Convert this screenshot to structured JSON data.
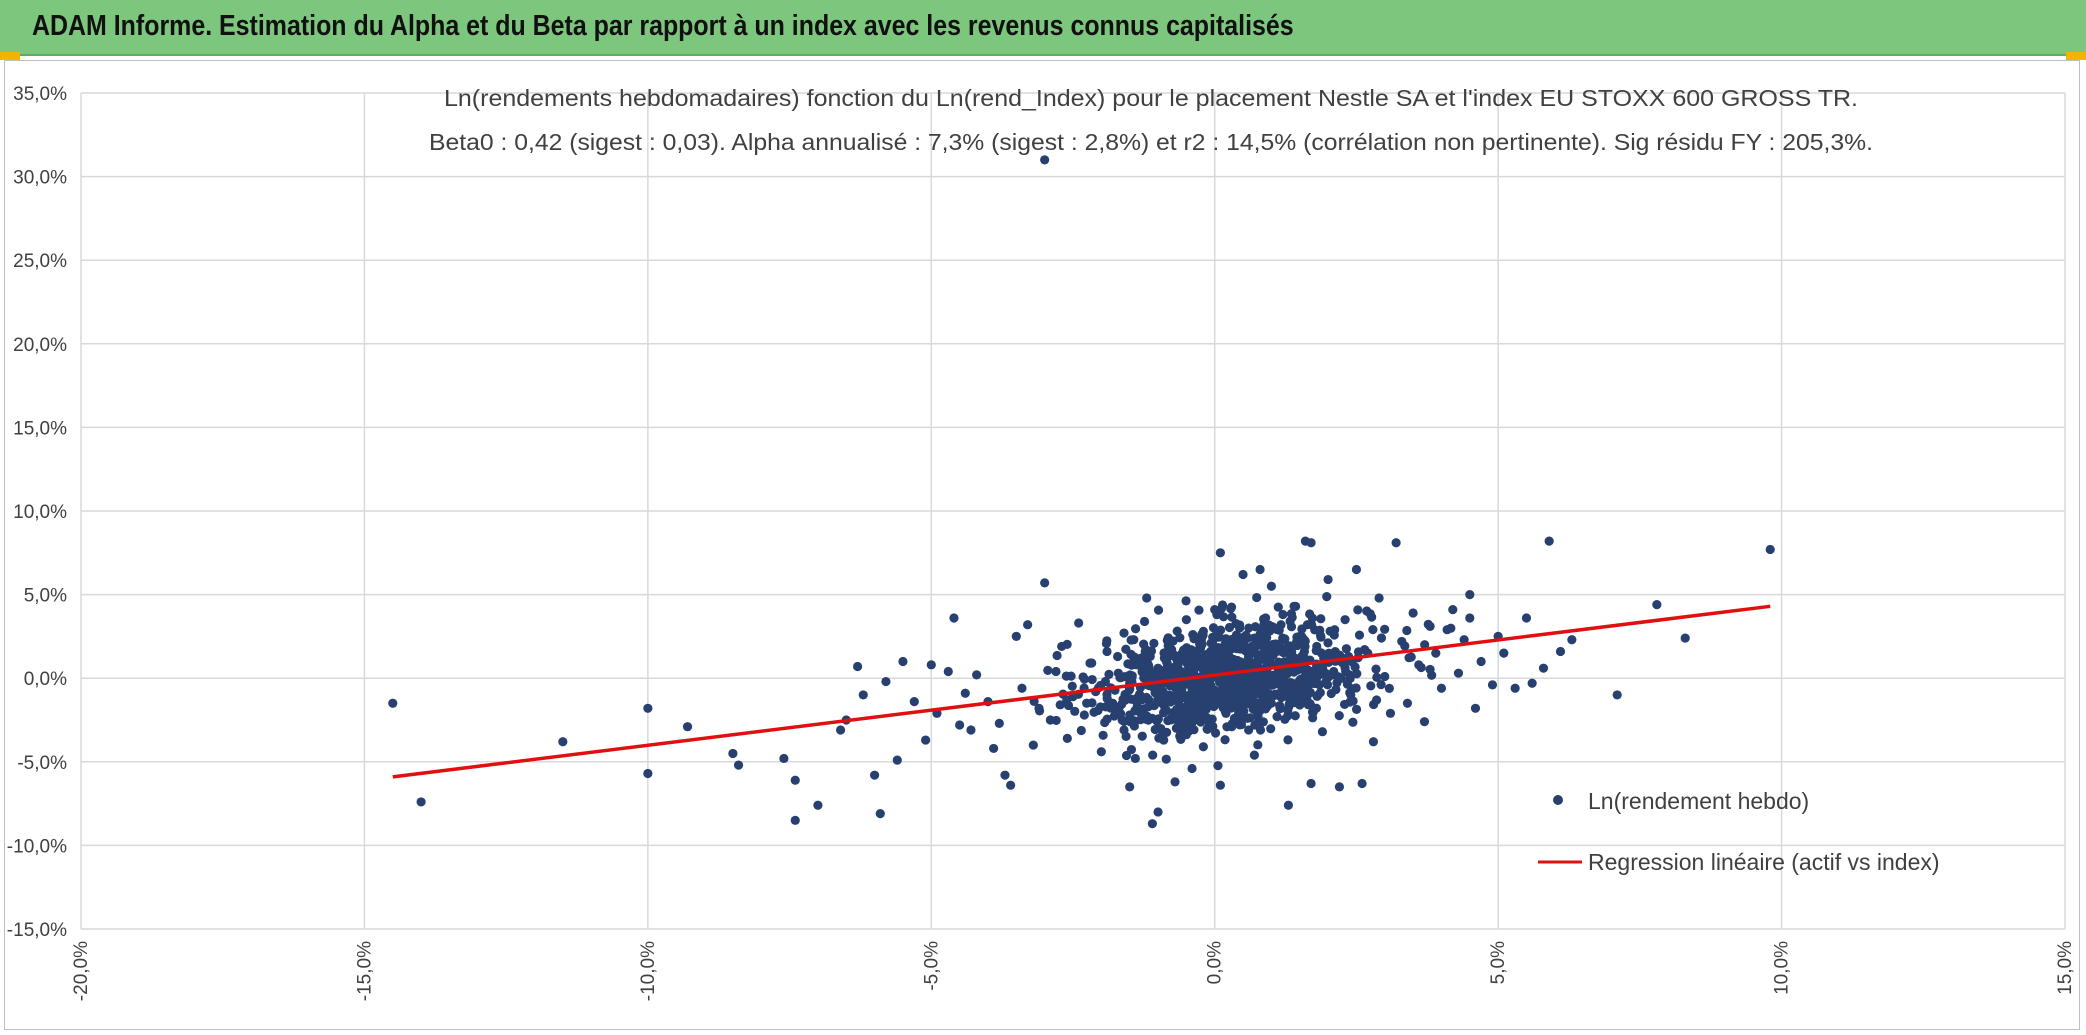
{
  "banner": {
    "title": "ADAM Informe. Estimation du Alpha et du Beta par rapport à un index avec les revenus connus capitalisés",
    "background": "#7dc67d",
    "accent": "#f2b400"
  },
  "chart_data": {
    "type": "scatter",
    "title": "Ln(rendements hebdomadaires) fonction du Ln(rend_Index) pour le placement Nestle SA et l'index EU STOXX 600 GROSS TR.",
    "subtitle": "Beta0 : 0,42 (sigest : 0,03). Alpha annualisé : 7,3% (sigest : 2,8%) et r2 : 14,5% (corrélation non pertinente). Sig résidu FY : 205,3%.",
    "xlim": [
      -20,
      15
    ],
    "ylim": [
      -15,
      35
    ],
    "x_ticks": [
      -20,
      -15,
      -10,
      -5,
      0,
      5,
      10,
      15
    ],
    "y_ticks": [
      -15,
      -10,
      -5,
      0,
      5,
      10,
      15,
      20,
      25,
      30,
      35
    ],
    "x_tick_labels": [
      "-20,0%",
      "-15,0%",
      "-10,0%",
      "-5,0%",
      "0,0%",
      "5,0%",
      "10,0%",
      "15,0%"
    ],
    "y_tick_labels": [
      "-15,0%",
      "-10,0%",
      "-5,0%",
      "0,0%",
      "5,0%",
      "10,0%",
      "15,0%",
      "20,0%",
      "25,0%",
      "30,0%",
      "35,0%"
    ],
    "grid": true,
    "legend_position": "bottom-right",
    "series": [
      {
        "name": "Ln(rendement hebdo)",
        "kind": "scatter",
        "color": "#27406f",
        "points": [
          [
            -14.5,
            -1.5
          ],
          [
            -14.0,
            -7.4
          ],
          [
            -11.5,
            -3.8
          ],
          [
            -10.0,
            -1.8
          ],
          [
            -10.0,
            -5.7
          ],
          [
            -9.3,
            -2.9
          ],
          [
            -8.5,
            -4.5
          ],
          [
            -8.4,
            -5.2
          ],
          [
            -7.6,
            -4.8
          ],
          [
            -7.4,
            -8.5
          ],
          [
            -7.4,
            -6.1
          ],
          [
            -7.0,
            -7.6
          ],
          [
            -6.6,
            -3.1
          ],
          [
            -6.5,
            -2.5
          ],
          [
            -6.3,
            0.7
          ],
          [
            -6.2,
            -1.0
          ],
          [
            -6.0,
            -5.8
          ],
          [
            -5.9,
            -8.1
          ],
          [
            -5.8,
            -0.2
          ],
          [
            -5.6,
            -4.9
          ],
          [
            -5.5,
            1.0
          ],
          [
            -5.3,
            -1.4
          ],
          [
            -5.1,
            -3.7
          ],
          [
            -5.0,
            0.8
          ],
          [
            -4.9,
            -2.1
          ],
          [
            -4.7,
            0.4
          ],
          [
            -4.6,
            3.6
          ],
          [
            -4.5,
            -2.8
          ],
          [
            -4.4,
            -0.9
          ],
          [
            -4.3,
            -3.1
          ],
          [
            -4.2,
            0.2
          ],
          [
            -4.0,
            -1.4
          ],
          [
            -3.9,
            -4.2
          ],
          [
            -3.8,
            -2.7
          ],
          [
            -3.7,
            -5.8
          ],
          [
            -3.6,
            -6.4
          ],
          [
            -3.5,
            2.5
          ],
          [
            -3.4,
            -0.6
          ],
          [
            -3.3,
            3.2
          ],
          [
            -3.2,
            -4.0
          ],
          [
            -3.1,
            -1.8
          ],
          [
            -3.0,
            5.7
          ],
          [
            -3.0,
            31.0
          ],
          [
            -2.9,
            -2.5
          ],
          [
            -2.8,
            0.4
          ],
          [
            -2.7,
            1.9
          ],
          [
            -2.6,
            -3.6
          ],
          [
            -2.5,
            -1.1
          ],
          [
            -2.4,
            3.3
          ],
          [
            -2.3,
            -2.2
          ],
          [
            -2.2,
            0.9
          ],
          [
            -2.1,
            -0.8
          ],
          [
            -2.0,
            -4.4
          ],
          [
            -1.9,
            1.6
          ],
          [
            -1.8,
            -1.5
          ],
          [
            -1.7,
            0.3
          ],
          [
            -1.6,
            -3.1
          ],
          [
            -1.6,
            2.7
          ],
          [
            -1.5,
            -6.5
          ],
          [
            -1.5,
            -0.3
          ],
          [
            -1.4,
            -4.8
          ],
          [
            -1.3,
            1.2
          ],
          [
            -1.2,
            -2.3
          ],
          [
            -1.2,
            4.8
          ],
          [
            -1.1,
            -8.7
          ],
          [
            -1.0,
            -8.0
          ],
          [
            -1.0,
            0.6
          ],
          [
            -0.9,
            -3.7
          ],
          [
            -0.8,
            2.2
          ],
          [
            -0.8,
            -1.0
          ],
          [
            -0.7,
            -6.2
          ],
          [
            -0.6,
            0.0
          ],
          [
            -0.5,
            3.5
          ],
          [
            -0.5,
            -2.4
          ],
          [
            -0.4,
            1.3
          ],
          [
            -0.4,
            -5.4
          ],
          [
            -0.3,
            -0.7
          ],
          [
            -0.2,
            2.8
          ],
          [
            -0.2,
            -4.1
          ],
          [
            -0.1,
            0.5
          ],
          [
            0.0,
            -1.6
          ],
          [
            0.0,
            4.1
          ],
          [
            0.1,
            -6.4
          ],
          [
            0.1,
            7.5
          ],
          [
            0.2,
            1.8
          ],
          [
            0.3,
            -2.9
          ],
          [
            0.4,
            0.2
          ],
          [
            0.5,
            6.2
          ],
          [
            0.5,
            -1.2
          ],
          [
            0.6,
            3.0
          ],
          [
            0.7,
            -4.6
          ],
          [
            0.8,
            6.5
          ],
          [
            0.8,
            1.1
          ],
          [
            0.9,
            -0.4
          ],
          [
            1.0,
            5.5
          ],
          [
            1.1,
            -2.3
          ],
          [
            1.2,
            2.4
          ],
          [
            1.3,
            -7.6
          ],
          [
            1.3,
            0.7
          ],
          [
            1.4,
            4.3
          ],
          [
            1.5,
            -1.6
          ],
          [
            1.6,
            8.2
          ],
          [
            1.7,
            8.1
          ],
          [
            1.7,
            -6.3
          ],
          [
            1.8,
            1.9
          ],
          [
            1.9,
            -3.2
          ],
          [
            2.0,
            5.9
          ],
          [
            2.1,
            0.4
          ],
          [
            2.2,
            -6.5
          ],
          [
            2.3,
            3.5
          ],
          [
            2.4,
            -1.0
          ],
          [
            2.5,
            6.5
          ],
          [
            2.6,
            -6.3
          ],
          [
            2.7,
            1.5
          ],
          [
            2.8,
            -3.8
          ],
          [
            2.9,
            4.8
          ],
          [
            3.0,
            0.1
          ],
          [
            3.1,
            -2.1
          ],
          [
            3.2,
            8.1
          ],
          [
            3.3,
            2.2
          ],
          [
            3.4,
            -1.5
          ],
          [
            3.5,
            3.9
          ],
          [
            3.6,
            0.8
          ],
          [
            3.7,
            -2.6
          ],
          [
            3.8,
            3.1
          ],
          [
            3.9,
            1.5
          ],
          [
            4.0,
            -0.6
          ],
          [
            4.1,
            2.9
          ],
          [
            4.2,
            4.1
          ],
          [
            4.3,
            0.3
          ],
          [
            4.4,
            2.3
          ],
          [
            4.5,
            5.0
          ],
          [
            4.5,
            3.6
          ],
          [
            4.6,
            -1.8
          ],
          [
            4.7,
            1.0
          ],
          [
            4.9,
            -0.4
          ],
          [
            5.0,
            2.5
          ],
          [
            5.1,
            1.5
          ],
          [
            5.3,
            -0.6
          ],
          [
            5.5,
            3.6
          ],
          [
            5.6,
            -0.3
          ],
          [
            5.8,
            0.6
          ],
          [
            5.9,
            8.2
          ],
          [
            6.1,
            1.6
          ],
          [
            6.3,
            2.3
          ],
          [
            7.1,
            -1.0
          ],
          [
            7.8,
            4.4
          ],
          [
            8.3,
            2.4
          ],
          [
            9.8,
            7.7
          ]
        ],
        "cluster": {
          "count": 1050,
          "x_mean": 0.3,
          "x_sd": 1.2,
          "y_sd": 1.6
        }
      },
      {
        "name": "Regression linéaire (actif vs index)",
        "kind": "line",
        "color": "#e01010",
        "x": [
          -14.5,
          9.8
        ],
        "y": [
          -5.9,
          4.3
        ]
      }
    ]
  }
}
